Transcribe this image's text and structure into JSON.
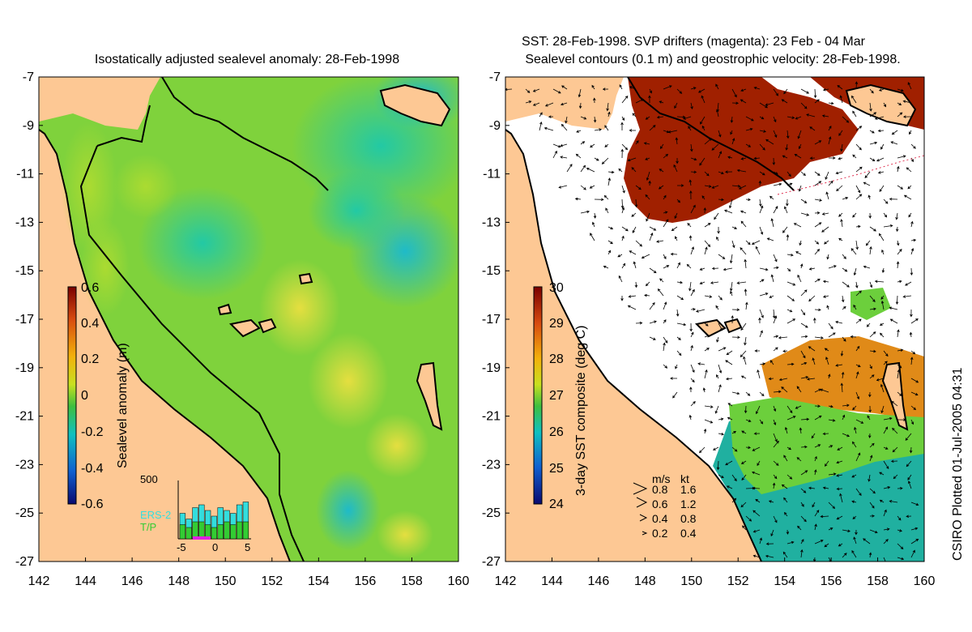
{
  "left_panel": {
    "title": "Isostatically adjusted sealevel anomaly: 28-Feb-1998",
    "colorbar": {
      "label": "Sealevel anomaly (m)",
      "ticks": [
        "0.6",
        "0.4",
        "0.2",
        "0",
        "-0.2",
        "-0.4",
        "-0.6"
      ]
    },
    "inset": {
      "top_tick": "500",
      "x_ticks": [
        "-5",
        "0",
        "5"
      ],
      "legend": [
        {
          "label": "ERS-2",
          "color": "#33dddd"
        },
        {
          "label": "T/P",
          "color": "#33cc33"
        }
      ],
      "bars_ers2": [
        0.45,
        0.35,
        0.55,
        0.6,
        0.5,
        0.4,
        0.55,
        0.5,
        0.45,
        0.6,
        0.65
      ],
      "bars_tp": [
        0.25,
        0.2,
        0.3,
        0.3,
        0.25,
        0.2,
        0.25,
        0.3,
        0.25,
        0.3,
        0.3
      ]
    }
  },
  "right_panel": {
    "title_line1": "SST: 28-Feb-1998. SVP drifters (magenta): 23 Feb - 04 Mar",
    "title_line2": "Sealevel contours (0.1 m) and geostrophic velocity: 28-Feb-1998.",
    "colorbar": {
      "label": "3-day SST composite (deg C)",
      "ticks": [
        "30",
        "29",
        "28",
        "27",
        "26",
        "25",
        "24"
      ]
    },
    "velocity_legend": {
      "header_ms": "m/s",
      "header_kt": "kt",
      "rows": [
        {
          "ms": "0.8",
          "kt": "1.6"
        },
        {
          "ms": "0.6",
          "kt": "1.2"
        },
        {
          "ms": "0.4",
          "kt": "0.8"
        },
        {
          "ms": "0.2",
          "kt": "0.4"
        }
      ]
    }
  },
  "axes": {
    "lat_labels": [
      "-7",
      "-9",
      "-11",
      "-13",
      "-15",
      "-17",
      "-19",
      "-21",
      "-23",
      "-25",
      "-27"
    ],
    "lon_labels": [
      "142",
      "144",
      "146",
      "148",
      "150",
      "152",
      "154",
      "156",
      "158",
      "160"
    ]
  },
  "credit": "CSIRO Plotted 01-Jul-2005 04:31",
  "colors": {
    "land": "#fdc894",
    "sea_anomaly_mid": "#7fd23c",
    "sst_warm": "#a02000",
    "sst_cool": "#20b0a0"
  }
}
